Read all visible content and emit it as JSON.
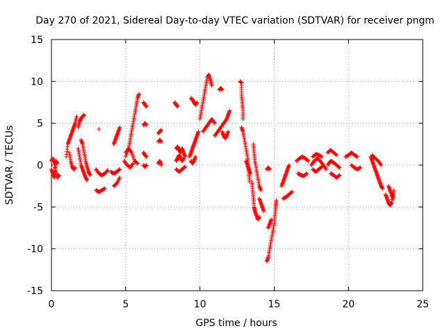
{
  "chart_data": {
    "type": "scatter",
    "title": "Day 270 of 2021, Sidereal Day-to-day VTEC variation (SDTVAR) for receiver pngm",
    "xlabel": "GPS time / hours",
    "ylabel": "SDTVAR / TECUs",
    "xlim": [
      0,
      25
    ],
    "ylim": [
      -15,
      15
    ],
    "xticks": [
      0,
      5,
      10,
      15,
      20,
      25
    ],
    "yticks": [
      -15,
      -10,
      -5,
      0,
      5,
      10,
      15
    ],
    "xtick_labels": [
      "0",
      "5",
      "10",
      "15",
      "20",
      "25"
    ],
    "ytick_labels": [
      "-15",
      "-10",
      "-5",
      "0",
      "5",
      "10",
      "15"
    ],
    "grid": true,
    "marker": "+",
    "color": "#ff0000",
    "segments": [
      [
        [
          0.0,
          0.5
        ],
        [
          0.1,
          0.8
        ],
        [
          0.2,
          0.2
        ],
        [
          0.3,
          -0.8
        ],
        [
          0.4,
          -1.5
        ],
        [
          0.5,
          -1.2
        ]
      ],
      [
        [
          0.0,
          -0.5
        ],
        [
          0.1,
          -1.0
        ],
        [
          0.2,
          -1.5
        ],
        [
          0.3,
          0.5
        ],
        [
          0.4,
          0.2
        ]
      ],
      [
        [
          1.0,
          1.0
        ],
        [
          1.1,
          2.5
        ],
        [
          1.2,
          3.0
        ],
        [
          1.3,
          3.5
        ],
        [
          1.4,
          4.0
        ],
        [
          1.5,
          4.5
        ],
        [
          1.6,
          5.0
        ],
        [
          1.7,
          5.8
        ]
      ],
      [
        [
          1.2,
          1.5
        ],
        [
          1.3,
          0.5
        ],
        [
          1.4,
          -0.2
        ],
        [
          1.5,
          -0.5
        ],
        [
          1.6,
          -0.3
        ]
      ],
      [
        [
          1.8,
          2.0
        ],
        [
          1.9,
          1.0
        ],
        [
          2.0,
          0.0
        ],
        [
          2.1,
          -0.5
        ],
        [
          2.2,
          -1.0
        ],
        [
          2.3,
          -1.5
        ],
        [
          2.4,
          -1.8
        ]
      ],
      [
        [
          1.8,
          4.5
        ],
        [
          1.9,
          5.2
        ],
        [
          2.0,
          5.6
        ],
        [
          2.1,
          5.8
        ],
        [
          2.2,
          6.0
        ]
      ],
      [
        [
          2.0,
          3.0
        ],
        [
          2.1,
          2.5
        ],
        [
          2.2,
          1.5
        ],
        [
          2.3,
          0.5
        ],
        [
          2.4,
          -0.2
        ],
        [
          2.5,
          -0.8
        ],
        [
          2.6,
          -1.2
        ]
      ],
      [
        [
          3.2,
          4.3
        ]
      ],
      [
        [
          3.0,
          -0.5
        ],
        [
          3.2,
          -1.0
        ],
        [
          3.4,
          -1.2
        ],
        [
          3.6,
          -1.0
        ],
        [
          3.8,
          -0.6
        ]
      ],
      [
        [
          3.0,
          -3.0
        ],
        [
          3.2,
          -3.2
        ],
        [
          3.4,
          -3.0
        ],
        [
          3.6,
          -2.8
        ]
      ],
      [
        [
          4.2,
          2.5
        ],
        [
          4.3,
          3.0
        ],
        [
          4.4,
          3.5
        ],
        [
          4.5,
          4.0
        ],
        [
          4.6,
          4.5
        ]
      ],
      [
        [
          4.0,
          -0.8
        ],
        [
          4.2,
          -1.0
        ],
        [
          4.4,
          -0.8
        ],
        [
          4.6,
          -0.5
        ]
      ],
      [
        [
          4.2,
          -2.5
        ],
        [
          4.4,
          -2.2
        ],
        [
          4.6,
          -1.5
        ]
      ],
      [
        [
          5.0,
          1.0
        ],
        [
          5.2,
          2.0
        ],
        [
          5.3,
          3.0
        ],
        [
          5.4,
          4.0
        ],
        [
          5.5,
          5.0
        ],
        [
          5.6,
          6.0
        ],
        [
          5.7,
          7.0
        ],
        [
          5.8,
          8.0
        ],
        [
          5.9,
          8.5
        ]
      ],
      [
        [
          5.0,
          1.5
        ],
        [
          5.2,
          2.0
        ],
        [
          5.4,
          1.5
        ],
        [
          5.6,
          0.5
        ],
        [
          5.8,
          0.2
        ]
      ],
      [
        [
          4.9,
          0.5
        ],
        [
          5.1,
          0.0
        ],
        [
          5.3,
          -0.3
        ],
        [
          5.5,
          0.2
        ]
      ],
      [
        [
          6.2,
          7.5
        ],
        [
          6.3,
          7.2
        ],
        [
          6.4,
          7.0
        ]
      ],
      [
        [
          6.2,
          4.8
        ],
        [
          6.3,
          5.0
        ],
        [
          6.4,
          4.8
        ]
      ],
      [
        [
          6.2,
          1.5
        ],
        [
          6.3,
          1.2
        ],
        [
          6.4,
          1.0
        ]
      ],
      [
        [
          6.2,
          0.0
        ],
        [
          6.3,
          -0.2
        ],
        [
          6.4,
          0.0
        ]
      ],
      [
        [
          7.2,
          3.8
        ],
        [
          7.3,
          4.0
        ],
        [
          7.4,
          4.2
        ]
      ],
      [
        [
          7.2,
          2.8
        ],
        [
          7.3,
          3.0
        ],
        [
          7.4,
          2.8
        ]
      ],
      [
        [
          7.2,
          0.2
        ],
        [
          7.3,
          0.5
        ],
        [
          7.4,
          0.0
        ]
      ],
      [
        [
          8.3,
          7.5
        ],
        [
          8.4,
          7.2
        ],
        [
          8.5,
          7.0
        ]
      ],
      [
        [
          8.4,
          2.0
        ],
        [
          8.5,
          2.2
        ],
        [
          8.6,
          1.8
        ],
        [
          8.7,
          1.5
        ],
        [
          8.8,
          2.0
        ],
        [
          8.9,
          1.5
        ],
        [
          9.0,
          1.0
        ]
      ],
      [
        [
          8.4,
          0.5
        ],
        [
          8.5,
          0.8
        ],
        [
          8.6,
          1.2
        ],
        [
          8.7,
          0.8
        ],
        [
          8.8,
          0.5
        ],
        [
          8.9,
          0.8
        ]
      ],
      [
        [
          8.4,
          -0.5
        ],
        [
          8.6,
          -0.8
        ],
        [
          8.8,
          -0.5
        ],
        [
          9.0,
          -0.2
        ]
      ],
      [
        [
          9.4,
          8.0
        ],
        [
          9.5,
          7.8
        ],
        [
          9.6,
          7.5
        ],
        [
          9.7,
          7.2
        ],
        [
          9.8,
          7.5
        ]
      ],
      [
        [
          9.3,
          1.0
        ],
        [
          9.4,
          1.5
        ],
        [
          9.5,
          2.0
        ],
        [
          9.6,
          2.5
        ],
        [
          9.7,
          3.0
        ],
        [
          9.8,
          3.5
        ],
        [
          9.9,
          4.0
        ]
      ],
      [
        [
          9.4,
          0.5
        ],
        [
          9.5,
          0.2
        ],
        [
          9.6,
          0.5
        ],
        [
          9.7,
          1.0
        ]
      ],
      [
        [
          10.0,
          5.5
        ],
        [
          10.1,
          6.5
        ],
        [
          10.2,
          7.5
        ],
        [
          10.3,
          8.5
        ],
        [
          10.4,
          9.5
        ],
        [
          10.5,
          10.5
        ],
        [
          10.6,
          10.8
        ],
        [
          10.7,
          10.2
        ],
        [
          10.8,
          9.5
        ]
      ],
      [
        [
          10.2,
          4.0
        ],
        [
          10.4,
          4.5
        ],
        [
          10.6,
          5.0
        ],
        [
          10.8,
          5.5
        ],
        [
          11.0,
          5.0
        ]
      ],
      [
        [
          11.0,
          3.5
        ],
        [
          11.2,
          4.0
        ],
        [
          11.4,
          4.5
        ],
        [
          11.6,
          5.0
        ],
        [
          11.8,
          5.5
        ],
        [
          11.9,
          6.0
        ],
        [
          12.0,
          6.5
        ]
      ],
      [
        [
          11.5,
          4.0
        ],
        [
          11.6,
          3.5
        ],
        [
          11.7,
          3.2
        ],
        [
          11.8,
          3.5
        ],
        [
          11.9,
          4.0
        ]
      ],
      [
        [
          11.3,
          9.0
        ],
        [
          11.4,
          9.2
        ],
        [
          11.5,
          9.0
        ]
      ],
      [
        [
          12.7,
          10.0
        ],
        [
          12.8,
          9.8
        ],
        [
          12.8,
          8.5
        ],
        [
          12.85,
          7.5
        ],
        [
          12.9,
          6.5
        ],
        [
          12.9,
          5.5
        ]
      ],
      [
        [
          12.8,
          4.5
        ],
        [
          12.9,
          4.0
        ],
        [
          13.0,
          3.0
        ],
        [
          13.1,
          2.0
        ],
        [
          13.2,
          1.0
        ],
        [
          13.25,
          0.0
        ],
        [
          13.3,
          -1.0
        ],
        [
          13.35,
          -2.0
        ]
      ],
      [
        [
          13.1,
          0.5
        ],
        [
          13.2,
          0.0
        ],
        [
          13.3,
          -0.5
        ],
        [
          13.4,
          -1.0
        ]
      ],
      [
        [
          13.5,
          -2.0
        ],
        [
          13.55,
          -3.0
        ],
        [
          13.6,
          -4.0
        ],
        [
          13.65,
          -5.0
        ],
        [
          13.7,
          -5.5
        ],
        [
          13.8,
          -6.0
        ],
        [
          13.9,
          -6.5
        ],
        [
          14.0,
          -6.2
        ]
      ],
      [
        [
          13.6,
          2.5
        ],
        [
          13.65,
          1.5
        ],
        [
          13.7,
          0.5
        ],
        [
          13.8,
          -0.5
        ],
        [
          13.9,
          -1.5
        ],
        [
          14.0,
          -2.5
        ],
        [
          14.1,
          -3.0
        ]
      ],
      [
        [
          14.0,
          -4.0
        ],
        [
          14.1,
          -4.5
        ],
        [
          14.2,
          -5.0
        ],
        [
          14.3,
          -5.5
        ]
      ],
      [
        [
          14.5,
          -0.5
        ],
        [
          14.6,
          -0.3
        ],
        [
          14.7,
          -0.5
        ]
      ],
      [
        [
          14.5,
          -11.5
        ],
        [
          14.6,
          -11.0
        ],
        [
          14.7,
          -10.0
        ],
        [
          14.8,
          -9.0
        ],
        [
          14.9,
          -8.0
        ],
        [
          15.0,
          -7.0
        ],
        [
          15.05,
          -6.0
        ],
        [
          15.1,
          -5.0
        ],
        [
          15.15,
          -4.2
        ]
      ],
      [
        [
          14.6,
          -7.5
        ],
        [
          14.7,
          -7.0
        ],
        [
          14.8,
          -6.5
        ]
      ],
      [
        [
          15.5,
          -2.5
        ],
        [
          15.6,
          -2.0
        ],
        [
          15.7,
          -1.5
        ],
        [
          15.8,
          -1.0
        ],
        [
          15.9,
          -0.5
        ],
        [
          16.0,
          0.0
        ]
      ],
      [
        [
          15.6,
          -4.0
        ],
        [
          15.8,
          -3.8
        ],
        [
          16.0,
          -3.5
        ],
        [
          16.2,
          -3.2
        ]
      ],
      [
        [
          16.5,
          0.5
        ],
        [
          16.7,
          0.8
        ],
        [
          16.9,
          1.0
        ],
        [
          17.1,
          0.8
        ],
        [
          17.3,
          0.5
        ]
      ],
      [
        [
          16.6,
          -1.0
        ],
        [
          16.8,
          -1.2
        ],
        [
          17.0,
          -1.3
        ],
        [
          17.2,
          -1.0
        ]
      ],
      [
        [
          17.5,
          0.0
        ],
        [
          17.7,
          0.5
        ],
        [
          17.9,
          0.8
        ],
        [
          18.1,
          0.5
        ],
        [
          18.3,
          0.0
        ],
        [
          18.5,
          -0.5
        ]
      ],
      [
        [
          17.6,
          1.0
        ],
        [
          17.8,
          1.3
        ],
        [
          18.0,
          1.2
        ],
        [
          18.2,
          1.0
        ]
      ],
      [
        [
          17.6,
          -0.5
        ],
        [
          17.8,
          -0.8
        ],
        [
          18.0,
          -0.5
        ],
        [
          18.2,
          -0.2
        ]
      ],
      [
        [
          18.6,
          1.5
        ],
        [
          18.8,
          1.8
        ],
        [
          19.0,
          1.5
        ],
        [
          19.2,
          1.2
        ]
      ],
      [
        [
          18.6,
          0.0
        ],
        [
          18.8,
          0.5
        ],
        [
          19.0,
          0.3
        ],
        [
          19.2,
          0.0
        ],
        [
          19.4,
          -0.3
        ]
      ],
      [
        [
          18.8,
          -1.0
        ],
        [
          19.0,
          -1.2
        ],
        [
          19.2,
          -1.5
        ],
        [
          19.4,
          -1.2
        ]
      ],
      [
        [
          19.8,
          1.0
        ],
        [
          20.0,
          1.2
        ],
        [
          20.2,
          1.5
        ],
        [
          20.4,
          1.2
        ],
        [
          20.6,
          1.0
        ]
      ],
      [
        [
          20.2,
          0.0
        ],
        [
          20.4,
          -0.3
        ],
        [
          20.6,
          -0.5
        ],
        [
          20.8,
          -0.3
        ]
      ],
      [
        [
          21.5,
          1.0
        ],
        [
          21.6,
          0.5
        ],
        [
          21.7,
          0.0
        ],
        [
          21.8,
          -0.5
        ],
        [
          21.9,
          -1.0
        ],
        [
          22.0,
          -1.5
        ],
        [
          22.1,
          -2.0
        ],
        [
          22.2,
          -2.5
        ],
        [
          22.3,
          -2.8
        ]
      ],
      [
        [
          21.6,
          1.2
        ],
        [
          21.8,
          0.8
        ],
        [
          22.0,
          0.5
        ],
        [
          22.2,
          0.0
        ]
      ],
      [
        [
          22.5,
          -3.5
        ],
        [
          22.6,
          -4.0
        ],
        [
          22.7,
          -4.5
        ],
        [
          22.8,
          -4.8
        ],
        [
          22.9,
          -4.5
        ],
        [
          23.0,
          -3.5
        ]
      ],
      [
        [
          22.7,
          -2.5
        ],
        [
          22.8,
          -3.0
        ],
        [
          22.9,
          -3.5
        ],
        [
          23.0,
          -4.0
        ],
        [
          23.05,
          -3.0
        ]
      ]
    ]
  }
}
